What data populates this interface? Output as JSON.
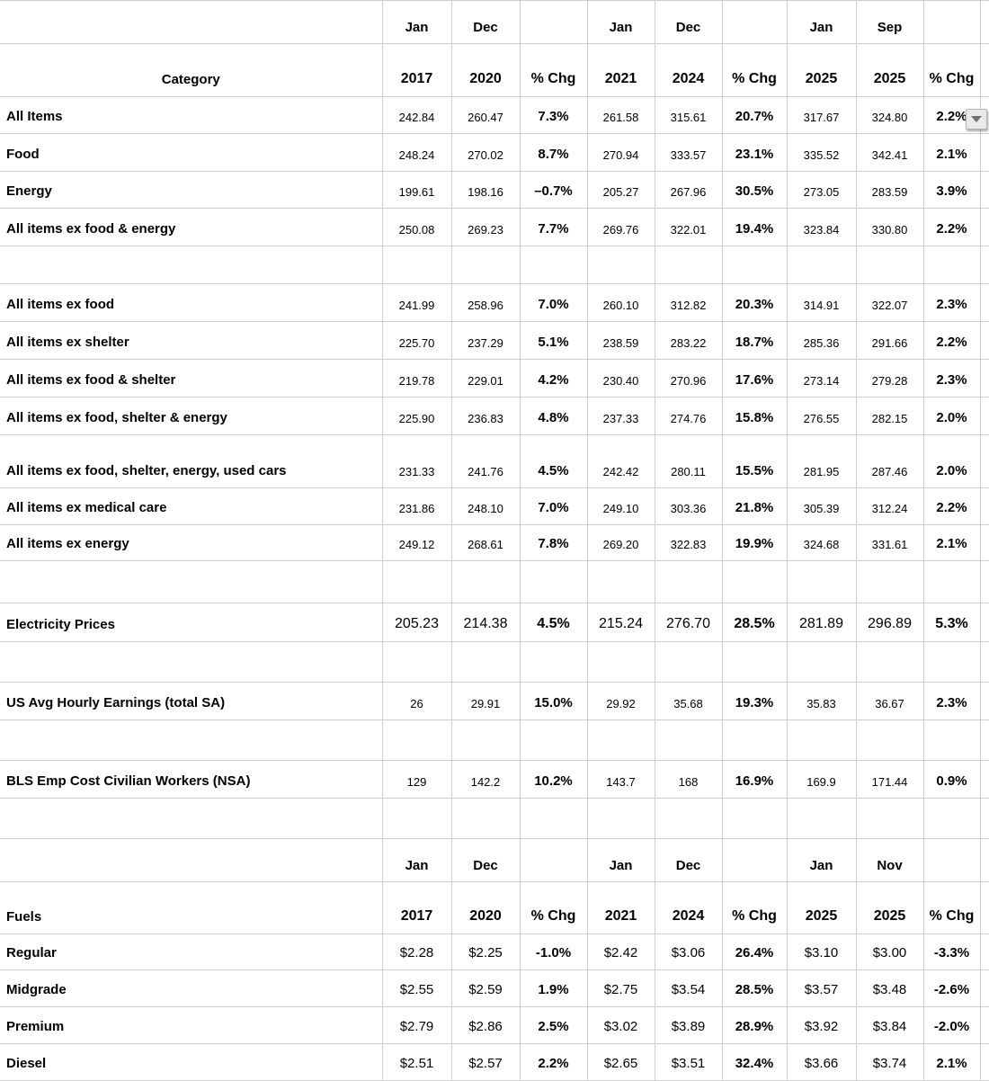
{
  "colors": {
    "gridline": "#cccccc",
    "text": "#000000",
    "dropdown_button_bg": "#e9e9e9",
    "dropdown_button_border": "#b4b4b4",
    "dropdown_arrow": "#707070"
  },
  "icons": {
    "dropdown": "chevron-down-icon"
  },
  "table": {
    "rows": [
      {
        "kind": "months",
        "label": "",
        "cells": [
          "Jan",
          "Dec",
          "",
          "Jan",
          "Dec",
          "",
          "Jan",
          "Sep",
          ""
        ]
      },
      {
        "kind": "header",
        "label": "Category",
        "label_align": "center",
        "cells": [
          "2017",
          "2020",
          "% Chg",
          "2021",
          "2024",
          "% Chg",
          "2025",
          "2025",
          "% Chg"
        ]
      },
      {
        "kind": "data",
        "variant": "cpi",
        "label": "All Items",
        "dropdown": true,
        "cells": [
          "242.84",
          "260.47",
          "7.3%",
          "261.58",
          "315.61",
          "20.7%",
          "317.67",
          "324.80",
          "2.2%"
        ]
      },
      {
        "kind": "data",
        "variant": "cpi",
        "label": "Food",
        "cells": [
          "248.24",
          "270.02",
          "8.7%",
          "270.94",
          "333.57",
          "23.1%",
          "335.52",
          "342.41",
          "2.1%"
        ]
      },
      {
        "kind": "data",
        "variant": "cpi",
        "label": "Energy",
        "dashed_bottom": true,
        "cells": [
          "199.61",
          "198.16",
          "–0.7%",
          "205.27",
          "267.96",
          "30.5%",
          "273.05",
          "283.59",
          "3.9%"
        ]
      },
      {
        "kind": "data",
        "variant": "cpi",
        "label": "All items ex food & energy",
        "cells": [
          "250.08",
          "269.23",
          "7.7%",
          "269.76",
          "322.01",
          "19.4%",
          "323.84",
          "330.80",
          "2.2%"
        ]
      },
      {
        "kind": "blank"
      },
      {
        "kind": "data",
        "variant": "cpi",
        "label": "All items ex food",
        "cells": [
          "241.99",
          "258.96",
          "7.0%",
          "260.10",
          "312.82",
          "20.3%",
          "314.91",
          "322.07",
          "2.3%"
        ]
      },
      {
        "kind": "data",
        "variant": "cpi",
        "label": "All items ex shelter",
        "cells": [
          "225.70",
          "237.29",
          "5.1%",
          "238.59",
          "283.22",
          "18.7%",
          "285.36",
          "291.66",
          "2.2%"
        ]
      },
      {
        "kind": "data",
        "variant": "cpi",
        "label": "All items ex food & shelter",
        "cells": [
          "219.78",
          "229.01",
          "4.2%",
          "230.40",
          "270.96",
          "17.6%",
          "273.14",
          "279.28",
          "2.3%"
        ]
      },
      {
        "kind": "data",
        "variant": "cpi",
        "label": "All items ex food, shelter & energy",
        "cells": [
          "225.90",
          "236.83",
          "4.8%",
          "237.33",
          "274.76",
          "15.8%",
          "276.55",
          "282.15",
          "2.0%"
        ]
      },
      {
        "kind": "data",
        "variant": "cpi",
        "label": "All items ex food, shelter, energy, used cars",
        "cells": [
          "231.33",
          "241.76",
          "4.5%",
          "242.42",
          "280.11",
          "15.5%",
          "281.95",
          "287.46",
          "2.0%"
        ]
      },
      {
        "kind": "data",
        "variant": "cpi",
        "label": "All items ex medical care",
        "cells": [
          "231.86",
          "248.10",
          "7.0%",
          "249.10",
          "303.36",
          "21.8%",
          "305.39",
          "312.24",
          "2.2%"
        ]
      },
      {
        "kind": "data",
        "variant": "cpi",
        "label": "All items ex energy",
        "cells": [
          "249.12",
          "268.61",
          "7.8%",
          "269.20",
          "322.83",
          "19.9%",
          "324.68",
          "331.61",
          "2.1%"
        ]
      },
      {
        "kind": "blank"
      },
      {
        "kind": "data",
        "variant": "elec",
        "label": "Electricity Prices",
        "cells": [
          "205.23",
          "214.38",
          "4.5%",
          "215.24",
          "276.70",
          "28.5%",
          "281.89",
          "296.89",
          "5.3%"
        ]
      },
      {
        "kind": "blank"
      },
      {
        "kind": "data",
        "variant": "cpi",
        "label": "US Avg Hourly Earnings (total SA)",
        "cells": [
          "26",
          "29.91",
          "15.0%",
          "29.92",
          "35.68",
          "19.3%",
          "35.83",
          "36.67",
          "2.3%"
        ]
      },
      {
        "kind": "blank"
      },
      {
        "kind": "data",
        "variant": "cpi",
        "label": "BLS Emp Cost Civilian Workers (NSA)",
        "cells": [
          "129",
          "142.2",
          "10.2%",
          "143.7",
          "168",
          "16.9%",
          "169.9",
          "171.44",
          "0.9%"
        ]
      },
      {
        "kind": "blank"
      },
      {
        "kind": "months",
        "label": "",
        "cells": [
          "Jan",
          "Dec",
          "",
          "Jan",
          "Dec",
          "",
          "Jan",
          "Nov",
          ""
        ]
      },
      {
        "kind": "header",
        "label": "Fuels",
        "label_align": "left",
        "cells": [
          "2017",
          "2020",
          "% Chg",
          "2021",
          "2024",
          "% Chg",
          "2025",
          "2025",
          "% Chg"
        ]
      },
      {
        "kind": "data",
        "variant": "fuel",
        "label": "Regular",
        "cells": [
          "$2.28",
          "$2.25",
          "-1.0%",
          "$2.42",
          "$3.06",
          "26.4%",
          "$3.10",
          "$3.00",
          "-3.3%"
        ]
      },
      {
        "kind": "data",
        "variant": "fuel",
        "label": "Midgrade",
        "cells": [
          "$2.55",
          "$2.59",
          "1.9%",
          "$2.75",
          "$3.54",
          "28.5%",
          "$3.57",
          "$3.48",
          "-2.6%"
        ]
      },
      {
        "kind": "data",
        "variant": "fuel",
        "label": "Premium",
        "cells": [
          "$2.79",
          "$2.86",
          "2.5%",
          "$3.02",
          "$3.89",
          "28.9%",
          "$3.92",
          "$3.84",
          "-2.0%"
        ]
      },
      {
        "kind": "data",
        "variant": "fuel",
        "label": "Diesel",
        "cells": [
          "$2.51",
          "$2.57",
          "2.2%",
          "$2.65",
          "$3.51",
          "32.4%",
          "$3.66",
          "$3.74",
          "2.1%"
        ]
      }
    ]
  }
}
